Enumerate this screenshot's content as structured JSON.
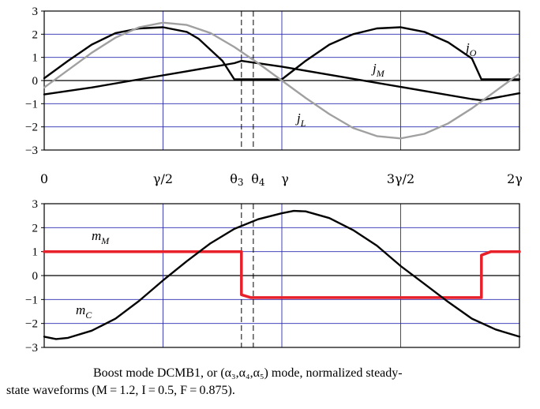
{
  "chart_data": [
    {
      "type": "line",
      "title": "",
      "xlabel": "",
      "ylabel": "",
      "ylim": [
        -3,
        3
      ],
      "yticks": [
        3,
        2,
        1,
        0,
        -1,
        -2,
        -3
      ],
      "ytick_labels": [
        "3",
        "2",
        "1",
        "0",
        "−1",
        "−2",
        "−3"
      ],
      "xlim": [
        0,
        2
      ],
      "x_unit": "γ",
      "grid": true,
      "series": [
        {
          "name": "j_O",
          "label_base": "j",
          "label_sub": "O",
          "color": "#000000",
          "x": [
            0,
            0.1,
            0.2,
            0.3,
            0.4,
            0.5,
            0.6,
            0.65,
            0.75,
            0.8,
            1.0,
            1.1,
            1.2,
            1.3,
            1.4,
            1.5,
            1.6,
            1.7,
            1.8,
            1.84,
            1.9,
            2.0
          ],
          "y": [
            0.1,
            0.85,
            1.55,
            2.05,
            2.25,
            2.3,
            2.1,
            1.8,
            0.85,
            0.05,
            0.05,
            0.85,
            1.55,
            2.0,
            2.25,
            2.3,
            2.1,
            1.65,
            0.95,
            0.05,
            0.05,
            0.05
          ]
        },
        {
          "name": "j_M",
          "label_base": "j",
          "label_sub": "M",
          "color": "#000000",
          "x": [
            0,
            0.2,
            0.4,
            0.6,
            0.8,
            0.83,
            1.0,
            1.2,
            1.4,
            1.6,
            1.8,
            1.84,
            2.0
          ],
          "y": [
            -0.6,
            -0.3,
            0.05,
            0.4,
            0.75,
            0.85,
            0.6,
            0.25,
            -0.1,
            -0.45,
            -0.8,
            -0.85,
            -0.55
          ]
        },
        {
          "name": "j_L",
          "label_base": "j",
          "label_sub": "L",
          "color": "#a0a0a0",
          "x": [
            0,
            0.1,
            0.2,
            0.3,
            0.4,
            0.5,
            0.6,
            0.7,
            0.8,
            0.9,
            1.0,
            1.1,
            1.2,
            1.3,
            1.4,
            1.5,
            1.6,
            1.7,
            1.8,
            1.9,
            2.0
          ],
          "y": [
            -0.3,
            0.45,
            1.2,
            1.85,
            2.3,
            2.5,
            2.4,
            2.05,
            1.45,
            0.75,
            0.0,
            -0.75,
            -1.45,
            -2.05,
            -2.4,
            -2.5,
            -2.3,
            -1.85,
            -1.2,
            -0.45,
            0.3
          ]
        }
      ]
    },
    {
      "type": "line",
      "title": "",
      "xlabel": "",
      "ylabel": "",
      "ylim": [
        -3,
        3
      ],
      "yticks": [
        3,
        2,
        1,
        0,
        -1,
        -2,
        -3
      ],
      "ytick_labels": [
        "3",
        "2",
        "1",
        "0",
        "−1",
        "−2",
        "−3"
      ],
      "xlim": [
        0,
        2
      ],
      "grid": true,
      "series": [
        {
          "name": "m_M",
          "label_base": "m",
          "label_sub": "M",
          "color": "#e8202a",
          "x": [
            0,
            0.83,
            0.83,
            0.87,
            1.0,
            1.2,
            1.4,
            1.6,
            1.84,
            1.84,
            1.88,
            2.0
          ],
          "y": [
            1,
            1,
            -0.8,
            -0.92,
            -0.92,
            -0.92,
            -0.92,
            -0.92,
            -0.92,
            0.85,
            1,
            1
          ]
        },
        {
          "name": "m_C",
          "label_base": "m",
          "label_sub": "C",
          "color": "#000000",
          "x": [
            0,
            0.05,
            0.1,
            0.2,
            0.3,
            0.4,
            0.5,
            0.6,
            0.7,
            0.8,
            0.9,
            1.0,
            1.05,
            1.1,
            1.2,
            1.3,
            1.4,
            1.5,
            1.6,
            1.7,
            1.8,
            1.9,
            2.0
          ],
          "y": [
            -2.55,
            -2.65,
            -2.6,
            -2.3,
            -1.8,
            -1.05,
            -0.2,
            0.6,
            1.35,
            1.95,
            2.35,
            2.6,
            2.7,
            2.68,
            2.4,
            1.9,
            1.25,
            0.4,
            -0.35,
            -1.1,
            -1.8,
            -2.25,
            -2.55
          ]
        }
      ]
    }
  ],
  "shared_x_axis": {
    "ticks": [
      {
        "x": 0,
        "label": "0"
      },
      {
        "x": 0.5,
        "label": "γ/2"
      },
      {
        "x": 1.0,
        "label": "γ"
      },
      {
        "x": 1.5,
        "label": "3γ/2"
      },
      {
        "x": 2.0,
        "label": "2γ"
      }
    ],
    "theta_markers": [
      {
        "x": 0.83,
        "label_base": "θ",
        "label_sub": "3"
      },
      {
        "x": 0.88,
        "label_base": "θ",
        "label_sub": "4"
      }
    ]
  },
  "caption": {
    "line1_text": "Boost mode DCMB1, or ",
    "line1_formula": "(α₃,α₄,α₅)",
    "line1_tail": " mode, normalized steady-",
    "line2_text": "state waveforms ",
    "line2_formula": "(M = 1.2, I = 0.5, F = 0.875)",
    "line2_tail": "."
  }
}
